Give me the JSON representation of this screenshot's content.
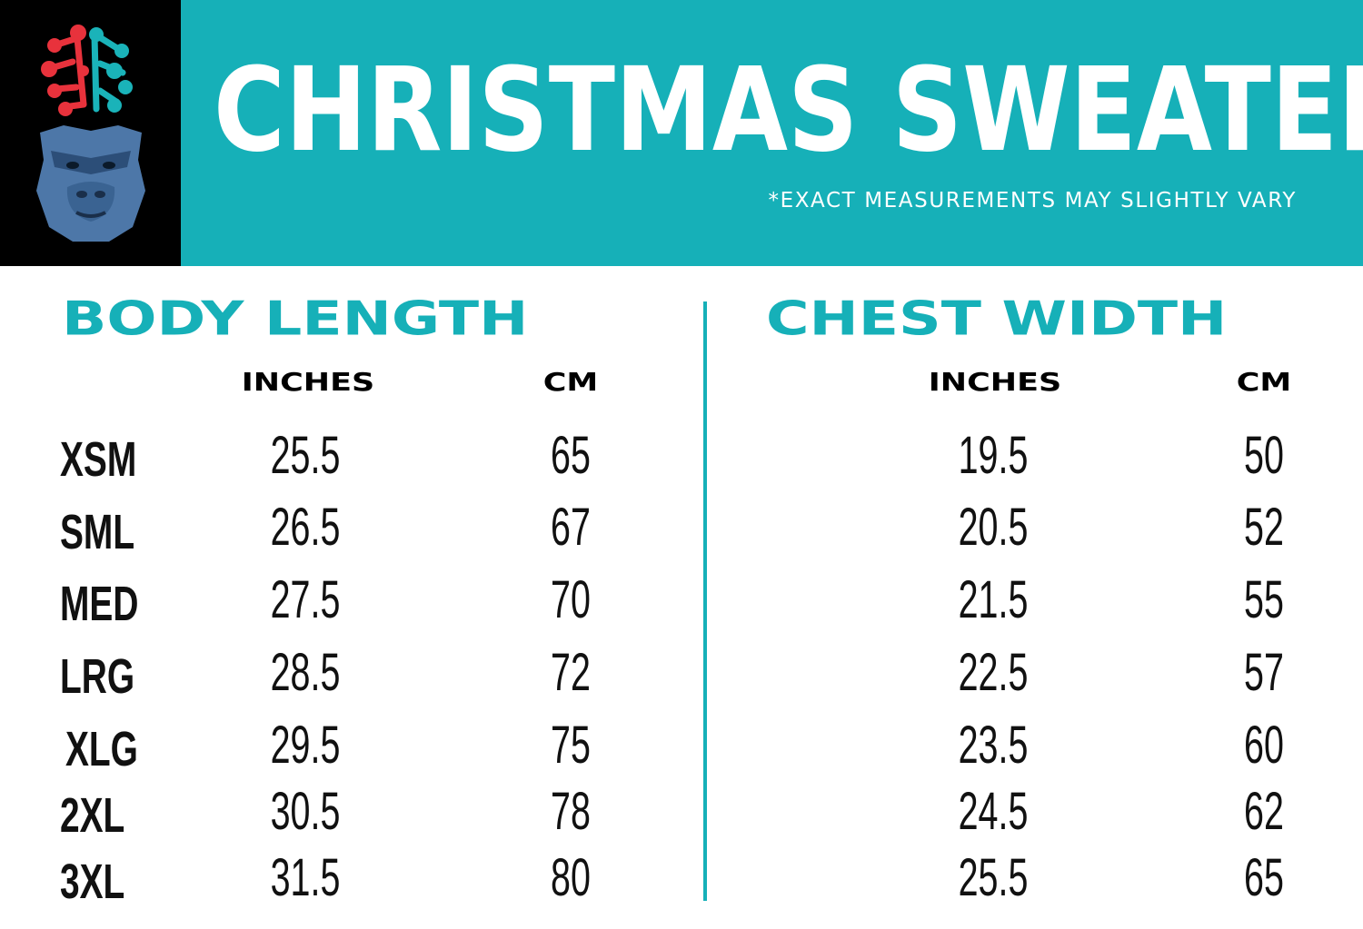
{
  "header": {
    "title": "CHRISTMAS SWEATER",
    "disclaimer": "*EXACT MEASUREMENTS MAY SLIGHTLY VARY",
    "logo_icon": "gorilla-brain-logo",
    "colors": {
      "teal": "#16b0b8",
      "black": "#000000",
      "logo_red": "#e8323c",
      "logo_teal": "#1ab3b9",
      "logo_blue": "#4d77a8"
    }
  },
  "body_length": {
    "heading": "BODY LENGTH",
    "inches_label": "INCHES",
    "cm_label": "CM"
  },
  "chest_width": {
    "heading": "CHEST WIDTH",
    "inches_label": "INCHES",
    "cm_label": "CM"
  },
  "rows": [
    {
      "size": "XSM",
      "body_in": "25.5",
      "body_cm": "65",
      "chest_in": "19.5",
      "chest_cm": "50"
    },
    {
      "size": "SML",
      "body_in": "26.5",
      "body_cm": "67",
      "chest_in": "20.5",
      "chest_cm": "52"
    },
    {
      "size": "MED",
      "body_in": "27.5",
      "body_cm": "70",
      "chest_in": "21.5",
      "chest_cm": "55"
    },
    {
      "size": "LRG",
      "body_in": "28.5",
      "body_cm": "72",
      "chest_in": "22.5",
      "chest_cm": "57"
    },
    {
      "size": "XLG",
      "body_in": "29.5",
      "body_cm": "75",
      "chest_in": "23.5",
      "chest_cm": "60"
    },
    {
      "size": "2XL",
      "body_in": "30.5",
      "body_cm": "78",
      "chest_in": "24.5",
      "chest_cm": "62"
    },
    {
      "size": "3XL",
      "body_in": "31.5",
      "body_cm": "80",
      "chest_in": "25.5",
      "chest_cm": "65"
    }
  ]
}
